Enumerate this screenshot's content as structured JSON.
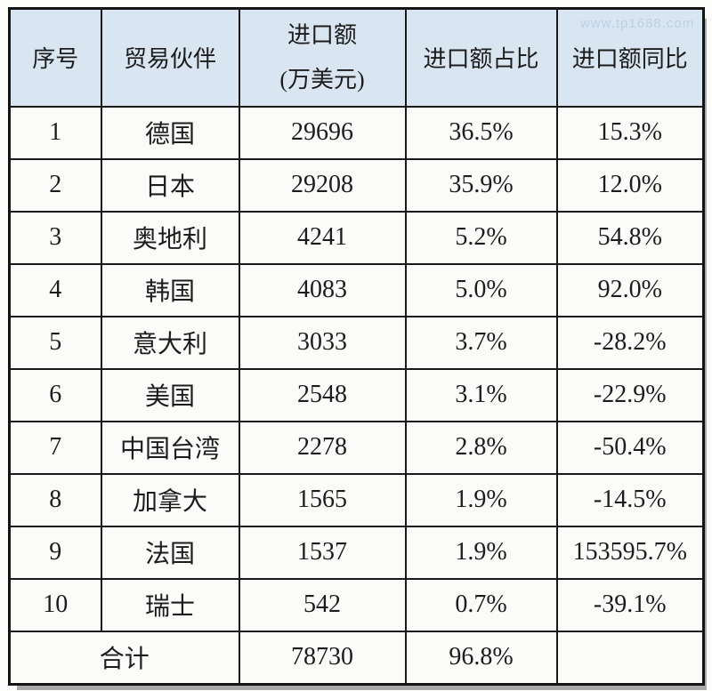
{
  "watermark": "www.tp1688.com",
  "colors": {
    "header_bg": "#d9e6f2",
    "row_bg": "#fbfbf9",
    "border": "#191919",
    "text": "#1c1c1c"
  },
  "table": {
    "headers": {
      "index": "序号",
      "partner": "贸易伙伴",
      "import_value_line1": "进口额",
      "import_value_line2": "(万美元)",
      "share": "进口额占比",
      "yoy": "进口额同比"
    },
    "rows": [
      {
        "no": "1",
        "partner": "德国",
        "value": "29696",
        "share": "36.5%",
        "yoy": "15.3%"
      },
      {
        "no": "2",
        "partner": "日本",
        "value": "29208",
        "share": "35.9%",
        "yoy": "12.0%"
      },
      {
        "no": "3",
        "partner": "奥地利",
        "value": "4241",
        "share": "5.2%",
        "yoy": "54.8%"
      },
      {
        "no": "4",
        "partner": "韩国",
        "value": "4083",
        "share": "5.0%",
        "yoy": "92.0%"
      },
      {
        "no": "5",
        "partner": "意大利",
        "value": "3033",
        "share": "3.7%",
        "yoy": "-28.2%"
      },
      {
        "no": "6",
        "partner": "美国",
        "value": "2548",
        "share": "3.1%",
        "yoy": "-22.9%"
      },
      {
        "no": "7",
        "partner": "中国台湾",
        "value": "2278",
        "share": "2.8%",
        "yoy": "-50.4%"
      },
      {
        "no": "8",
        "partner": "加拿大",
        "value": "1565",
        "share": "1.9%",
        "yoy": "-14.5%"
      },
      {
        "no": "9",
        "partner": "法国",
        "value": "1537",
        "share": "1.9%",
        "yoy": "153595.7%"
      },
      {
        "no": "10",
        "partner": "瑞士",
        "value": "542",
        "share": "0.7%",
        "yoy": "-39.1%"
      }
    ],
    "total": {
      "label": "合计",
      "value": "78730",
      "share": "96.8%",
      "yoy": ""
    }
  },
  "chart_data": {
    "type": "table",
    "title": "",
    "columns": [
      "序号",
      "贸易伙伴",
      "进口额(万美元)",
      "进口额占比",
      "进口额同比"
    ],
    "categories": [
      "德国",
      "日本",
      "奥地利",
      "韩国",
      "意大利",
      "美国",
      "中国台湾",
      "加拿大",
      "法国",
      "瑞士"
    ],
    "series": [
      {
        "name": "进口额(万美元)",
        "values": [
          29696,
          29208,
          4241,
          4083,
          3033,
          2548,
          2278,
          1565,
          1537,
          542
        ]
      },
      {
        "name": "进口额占比(%)",
        "values": [
          36.5,
          35.9,
          5.2,
          5.0,
          3.7,
          3.1,
          2.8,
          1.9,
          1.9,
          0.7
        ]
      },
      {
        "name": "进口额同比(%)",
        "values": [
          15.3,
          12.0,
          54.8,
          92.0,
          -28.2,
          -22.9,
          -50.4,
          -14.5,
          153595.7,
          -39.1
        ]
      }
    ],
    "total_row": {
      "label": "合计",
      "进口额(万美元)": 78730,
      "进口额占比(%)": 96.8
    }
  }
}
